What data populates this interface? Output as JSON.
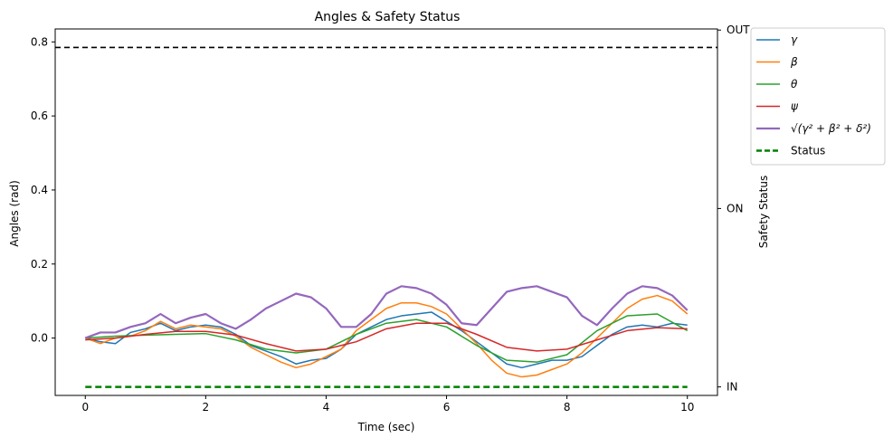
{
  "chart_data": {
    "type": "line",
    "title": "Angles & Safety Status",
    "xlabel": "Time (sec)",
    "ylabel": "Angles (rad)",
    "y2label": "Safety Status",
    "xlim": [
      -0.5,
      10.5
    ],
    "ylim": [
      -0.155,
      0.835
    ],
    "xticks": [
      0,
      2,
      4,
      6,
      8,
      10
    ],
    "xtick_labels": [
      "0",
      "2",
      "4",
      "6",
      "8",
      "10"
    ],
    "yticks": [
      0.0,
      0.2,
      0.4,
      0.6,
      0.8
    ],
    "ytick_labels": [
      "0.0",
      "0.2",
      "0.4",
      "0.6",
      "0.8"
    ],
    "y2_categories": [
      "IN",
      "ON",
      "OUT"
    ],
    "y2_tick_values": [
      -0.132,
      0.35,
      0.832
    ],
    "threshold_line": {
      "y": 0.785,
      "color": "#000000",
      "style": "dashed"
    },
    "grid": false,
    "legend_position": "outside-top-right",
    "legend": [
      {
        "label": "γ",
        "color": "#1f77b4",
        "style": "solid"
      },
      {
        "label": "β",
        "color": "#ff7f0e",
        "style": "solid"
      },
      {
        "label": "θ",
        "color": "#2ca02c",
        "style": "solid"
      },
      {
        "label": "ψ",
        "color": "#d62728",
        "style": "solid"
      },
      {
        "label": "√(γ² + β² + δ²)",
        "color": "#9467bd",
        "style": "solid"
      },
      {
        "label": "Status",
        "color": "#008000",
        "style": "dashed"
      }
    ],
    "series": [
      {
        "name": "γ",
        "color": "#1f77b4",
        "width": 1.5,
        "x": [
          0,
          0.25,
          0.5,
          0.75,
          1,
          1.25,
          1.5,
          1.75,
          2,
          2.25,
          2.5,
          2.75,
          3,
          3.25,
          3.5,
          3.75,
          4,
          4.25,
          4.5,
          4.75,
          5,
          5.25,
          5.5,
          5.75,
          6,
          6.25,
          6.5,
          6.75,
          7,
          7.25,
          7.5,
          7.75,
          8,
          8.25,
          8.5,
          8.75,
          9,
          9.25,
          9.5,
          9.75,
          10
        ],
        "y": [
          0.0,
          -0.01,
          -0.015,
          0.015,
          0.025,
          0.04,
          0.02,
          0.03,
          0.035,
          0.03,
          0.01,
          -0.02,
          -0.035,
          -0.05,
          -0.07,
          -0.06,
          -0.055,
          -0.03,
          0.01,
          0.03,
          0.05,
          0.06,
          0.065,
          0.07,
          0.045,
          0.02,
          -0.01,
          -0.04,
          -0.07,
          -0.08,
          -0.07,
          -0.06,
          -0.06,
          -0.05,
          -0.02,
          0.01,
          0.03,
          0.035,
          0.03,
          0.04,
          0.035
        ]
      },
      {
        "name": "β",
        "color": "#ff7f0e",
        "width": 1.5,
        "x": [
          0,
          0.25,
          0.5,
          0.75,
          1,
          1.25,
          1.5,
          1.75,
          2,
          2.25,
          2.5,
          2.75,
          3,
          3.25,
          3.5,
          3.75,
          4,
          4.25,
          4.5,
          4.75,
          5,
          5.25,
          5.5,
          5.75,
          6,
          6.25,
          6.5,
          6.75,
          7,
          7.25,
          7.5,
          7.75,
          8,
          8.25,
          8.5,
          8.75,
          9,
          9.25,
          9.5,
          9.75,
          10
        ],
        "y": [
          0.0,
          -0.015,
          0.0,
          0.005,
          0.02,
          0.045,
          0.025,
          0.035,
          0.03,
          0.025,
          0.005,
          -0.025,
          -0.045,
          -0.065,
          -0.08,
          -0.07,
          -0.05,
          -0.03,
          0.02,
          0.05,
          0.08,
          0.095,
          0.095,
          0.085,
          0.065,
          0.025,
          -0.015,
          -0.06,
          -0.095,
          -0.105,
          -0.1,
          -0.085,
          -0.07,
          -0.04,
          0.0,
          0.04,
          0.08,
          0.105,
          0.115,
          0.1,
          0.065
        ]
      },
      {
        "name": "θ",
        "color": "#2ca02c",
        "width": 1.5,
        "x": [
          0,
          0.5,
          1,
          1.5,
          2,
          2.5,
          3,
          3.5,
          4,
          4.5,
          5,
          5.5,
          6,
          6.5,
          7,
          7.5,
          8,
          8.5,
          9,
          9.5,
          10
        ],
        "y": [
          0.0,
          0.005,
          0.008,
          0.01,
          0.012,
          -0.005,
          -0.03,
          -0.04,
          -0.03,
          0.01,
          0.04,
          0.05,
          0.03,
          -0.02,
          -0.06,
          -0.065,
          -0.045,
          0.02,
          0.06,
          0.065,
          0.02
        ]
      },
      {
        "name": "ψ",
        "color": "#d62728",
        "width": 1.5,
        "x": [
          0,
          0.5,
          1,
          1.5,
          2,
          2.5,
          3,
          3.5,
          4,
          4.5,
          5,
          5.5,
          6,
          6.5,
          7,
          7.5,
          8,
          8.5,
          9,
          9.5,
          10
        ],
        "y": [
          -0.005,
          0.0,
          0.01,
          0.018,
          0.018,
          0.008,
          -0.015,
          -0.035,
          -0.03,
          -0.01,
          0.025,
          0.04,
          0.04,
          0.01,
          -0.025,
          -0.035,
          -0.03,
          -0.005,
          0.02,
          0.028,
          0.025
        ]
      },
      {
        "name": "√(γ² + β² + δ²)",
        "color": "#9467bd",
        "width": 2.2,
        "x": [
          0,
          0.25,
          0.5,
          0.75,
          1,
          1.25,
          1.5,
          1.75,
          2,
          2.25,
          2.5,
          2.75,
          3,
          3.25,
          3.5,
          3.75,
          4,
          4.25,
          4.5,
          4.75,
          5,
          5.25,
          5.5,
          5.75,
          6,
          6.25,
          6.5,
          6.75,
          7,
          7.25,
          7.5,
          7.75,
          8,
          8.25,
          8.5,
          8.75,
          9,
          9.25,
          9.5,
          9.75,
          10
        ],
        "y": [
          0.0,
          0.015,
          0.015,
          0.03,
          0.04,
          0.065,
          0.04,
          0.055,
          0.065,
          0.04,
          0.025,
          0.05,
          0.08,
          0.1,
          0.12,
          0.11,
          0.08,
          0.03,
          0.03,
          0.065,
          0.12,
          0.14,
          0.135,
          0.12,
          0.09,
          0.04,
          0.035,
          0.08,
          0.125,
          0.135,
          0.14,
          0.125,
          0.11,
          0.06,
          0.035,
          0.08,
          0.12,
          0.14,
          0.135,
          0.115,
          0.075
        ]
      }
    ],
    "status_series": {
      "name": "Status",
      "color": "#008000",
      "style": "dashed",
      "width": 2.5,
      "x": [
        0,
        10
      ],
      "y_category": "IN"
    }
  }
}
